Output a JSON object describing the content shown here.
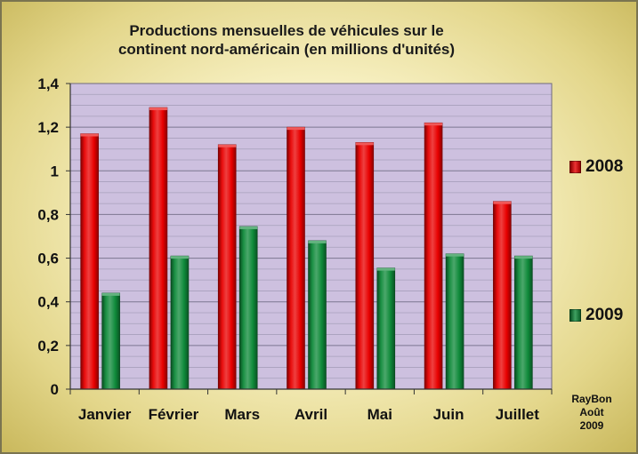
{
  "chart_data": {
    "type": "bar",
    "title": "Productions mensuelles de véhicules  sur le\ncontinent nord-américain (en millions d'unités)",
    "xlabel": "",
    "ylabel": "",
    "categories": [
      "Janvier",
      "Février",
      "Mars",
      "Avril",
      "Mai",
      "Juin",
      "Juillet"
    ],
    "series": [
      {
        "name": "2008",
        "color": "#e80000",
        "values": [
          1.17,
          1.29,
          1.12,
          1.2,
          1.13,
          1.22,
          0.86
        ]
      },
      {
        "name": "2009",
        "color": "#0f8a3a",
        "values": [
          0.44,
          0.61,
          0.745,
          0.68,
          0.555,
          0.62,
          0.61
        ]
      }
    ],
    "ylim": [
      0,
      1.4
    ],
    "yticks": [
      "0",
      "0,2",
      "0,4",
      "0,6",
      "0,8",
      "1",
      "1,2",
      "1,4"
    ],
    "grid": true,
    "plot_background": "#cdc0df",
    "legend_position": "right"
  },
  "credit": {
    "line1": "RayBon",
    "line2": "Août",
    "line3": "2009"
  }
}
